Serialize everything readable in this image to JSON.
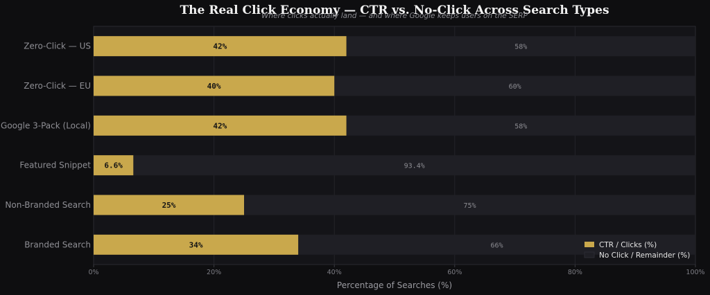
{
  "chart_data": {
    "type": "bar",
    "orientation": "horizontal",
    "stacked": true,
    "title": "The Real Click Economy — CTR vs. No-Click Across Search Types",
    "subtitle": "Where clicks actually land — and where Google keeps users on the SERP",
    "xlabel": "Percentage of Searches (%)",
    "ylabel": "",
    "xlim": [
      0,
      100
    ],
    "xticks": [
      "0%",
      "20%",
      "40%",
      "60%",
      "80%",
      "100%"
    ],
    "categories": [
      "Zero-Click — US",
      "Zero-Click — EU",
      "Google 3-Pack (Local)",
      "Featured Snippet",
      "Non-Branded Search",
      "Branded Search"
    ],
    "series": [
      {
        "name": "CTR / Clicks (%)",
        "color": "#c9a84c",
        "values": [
          42,
          40,
          42,
          6.6,
          25,
          34
        ],
        "labels": [
          "42%",
          "40%",
          "42%",
          "6.6%",
          "25%",
          "34%"
        ]
      },
      {
        "name": "No Click / Remainder (%)",
        "color": "#1f1f25",
        "values": [
          58,
          60,
          58,
          93.4,
          75,
          66
        ],
        "labels": [
          "58%",
          "60%",
          "58%",
          "93.4%",
          "75%",
          "66%"
        ]
      }
    ],
    "grid": true,
    "legend_position": "bottom-right"
  }
}
